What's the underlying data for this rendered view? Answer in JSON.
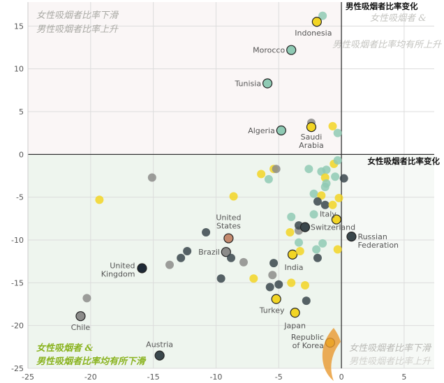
{
  "chart_data": {
    "type": "scatter",
    "xlabel": "女性吸烟者比率变化",
    "ylabel": "男性吸烟者比率变化",
    "xlim": [
      -25,
      7.4
    ],
    "ylim": [
      -25,
      17.8
    ],
    "xticks": [
      -25,
      -20,
      -15,
      -10,
      -5,
      0,
      5
    ],
    "yticks": [
      15,
      10,
      5,
      0,
      -5,
      -10,
      -15,
      -20,
      -25
    ],
    "grid": true,
    "quadrant_labels": {
      "top_left": [
        "女性吸烟者比率下滑",
        "男性吸烟者比率上升"
      ],
      "top_right": [
        "女性吸烟者 &",
        "男性吸烟者比率均有所上升"
      ],
      "bottom_left": [
        "女性吸烟者 &",
        "男性吸烟者比率均有所下滑"
      ],
      "bottom_right": [
        "女性吸烟者比率下滑",
        "男性吸烟者比率上升"
      ]
    },
    "colors": {
      "yellow": "#f2d524",
      "teal": "#8fcab4",
      "gray": "#8c8c8a",
      "dark": "#3a474c",
      "navy": "#1d2936",
      "brown": "#c48a6e",
      "quadrant_upper_left": "#faf6f6",
      "quadrant_lower_left": "#eef5ee",
      "bottom_left_label": "#8ab31f"
    },
    "points": [
      {
        "x": -1.5,
        "y": 16.2,
        "color": "teal"
      },
      {
        "x": -1.96,
        "y": 15.5,
        "color": "yellow",
        "label": "Indonesia"
      },
      {
        "x": -4.0,
        "y": 12.2,
        "color": "teal",
        "label": "Morocco"
      },
      {
        "x": -5.9,
        "y": 8.3,
        "color": "teal",
        "label": "Tunisia"
      },
      {
        "x": -4.8,
        "y": 2.8,
        "color": "teal",
        "label": "Algeria"
      },
      {
        "x": -2.4,
        "y": 3.7,
        "color": "gray"
      },
      {
        "x": -2.4,
        "y": 3.2,
        "color": "yellow",
        "label": "Saudi Arabia"
      },
      {
        "x": -0.7,
        "y": 3.3,
        "color": "yellow"
      },
      {
        "x": -0.3,
        "y": 2.5,
        "color": "teal"
      },
      {
        "x": -15.1,
        "y": -2.7,
        "color": "gray"
      },
      {
        "x": -19.3,
        "y": -5.3,
        "color": "yellow"
      },
      {
        "x": -20.3,
        "y": -16.8,
        "color": "gray"
      },
      {
        "x": -20.8,
        "y": -18.9,
        "color": "gray",
        "label": "Chile"
      },
      {
        "x": -15.9,
        "y": -13.3,
        "color": "navy",
        "label": "United Kingdom"
      },
      {
        "x": -14.5,
        "y": -23.5,
        "color": "dark",
        "label": "Austria"
      },
      {
        "x": -10.8,
        "y": -9.1,
        "color": "dark"
      },
      {
        "x": -12.3,
        "y": -11.3,
        "color": "dark"
      },
      {
        "x": -12.8,
        "y": -12.1,
        "color": "dark"
      },
      {
        "x": -13.7,
        "y": -12.9,
        "color": "gray"
      },
      {
        "x": -9.6,
        "y": -14.5,
        "color": "dark"
      },
      {
        "x": -9.0,
        "y": -9.8,
        "color": "brown",
        "label": "United States"
      },
      {
        "x": -9.2,
        "y": -11.4,
        "color": "gray",
        "label": "Brazil"
      },
      {
        "x": -8.8,
        "y": -12.1,
        "color": "dark"
      },
      {
        "x": -7.8,
        "y": -12.6,
        "color": "gray"
      },
      {
        "x": -7.0,
        "y": -14.5,
        "color": "yellow"
      },
      {
        "x": -5.4,
        "y": -12.7,
        "color": "dark"
      },
      {
        "x": -5.5,
        "y": -14.1,
        "color": "gray"
      },
      {
        "x": -5.7,
        "y": -15.5,
        "color": "dark"
      },
      {
        "x": -5.0,
        "y": -15.2,
        "color": "dark"
      },
      {
        "x": -4.0,
        "y": -15.0,
        "color": "yellow"
      },
      {
        "x": -2.9,
        "y": -15.3,
        "color": "yellow"
      },
      {
        "x": -2.8,
        "y": -17.1,
        "color": "dark"
      },
      {
        "x": -5.2,
        "y": -16.9,
        "color": "yellow",
        "label": "Turkey"
      },
      {
        "x": -3.7,
        "y": -18.5,
        "color": "yellow",
        "label": "Japan"
      },
      {
        "x": -3.9,
        "y": -11.7,
        "color": "yellow",
        "label": "India"
      },
      {
        "x": -8.6,
        "y": -4.9,
        "color": "yellow"
      },
      {
        "x": -6.4,
        "y": -2.3,
        "color": "yellow"
      },
      {
        "x": -5.4,
        "y": -1.7,
        "color": "yellow"
      },
      {
        "x": -5.2,
        "y": -1.7,
        "color": "gray"
      },
      {
        "x": -5.8,
        "y": -2.9,
        "color": "teal"
      },
      {
        "x": -2.6,
        "y": -1.7,
        "color": "teal"
      },
      {
        "x": -1.6,
        "y": -2.0,
        "color": "teal"
      },
      {
        "x": -1.2,
        "y": -1.8,
        "color": "teal"
      },
      {
        "x": -0.5,
        "y": -2.6,
        "color": "teal"
      },
      {
        "x": -1.3,
        "y": -2.7,
        "color": "yellow"
      },
      {
        "x": -1.2,
        "y": -3.4,
        "color": "teal"
      },
      {
        "x": -1.3,
        "y": -3.8,
        "color": "teal"
      },
      {
        "x": -0.6,
        "y": -1.1,
        "color": "yellow"
      },
      {
        "x": -0.3,
        "y": -0.7,
        "color": "teal"
      },
      {
        "x": 0.2,
        "y": -2.8,
        "color": "dark"
      },
      {
        "x": -2.2,
        "y": -4.6,
        "color": "teal"
      },
      {
        "x": -1.6,
        "y": -4.8,
        "color": "yellow"
      },
      {
        "x": -0.2,
        "y": -5.1,
        "color": "yellow"
      },
      {
        "x": -1.9,
        "y": -5.5,
        "color": "dark"
      },
      {
        "x": -1.3,
        "y": -5.9,
        "color": "dark"
      },
      {
        "x": -0.7,
        "y": -5.9,
        "color": "yellow"
      },
      {
        "x": -4.0,
        "y": -7.3,
        "color": "teal"
      },
      {
        "x": -2.2,
        "y": -7.0,
        "color": "teal"
      },
      {
        "x": -4.1,
        "y": -9.1,
        "color": "yellow"
      },
      {
        "x": -3.4,
        "y": -8.9,
        "color": "gray"
      },
      {
        "x": -3.4,
        "y": -8.3,
        "color": "dark"
      },
      {
        "x": -2.9,
        "y": -8.5,
        "color": "dark",
        "label": "Switzerland"
      },
      {
        "x": -0.4,
        "y": -7.6,
        "color": "yellow",
        "label": "Italy"
      },
      {
        "x": -3.4,
        "y": -10.3,
        "color": "teal"
      },
      {
        "x": -1.5,
        "y": -10.4,
        "color": "teal"
      },
      {
        "x": -2.0,
        "y": -11.1,
        "color": "teal"
      },
      {
        "x": -3.3,
        "y": -11.3,
        "color": "yellow"
      },
      {
        "x": -1.9,
        "y": -12.1,
        "color": "dark"
      },
      {
        "x": -0.3,
        "y": -11.1,
        "color": "yellow"
      },
      {
        "x": 0.8,
        "y": -9.6,
        "color": "dark",
        "label": "Russian Federation"
      },
      {
        "x": -0.9,
        "y": -22.0,
        "color": "yellow",
        "label": "Republic of Korea"
      }
    ]
  }
}
